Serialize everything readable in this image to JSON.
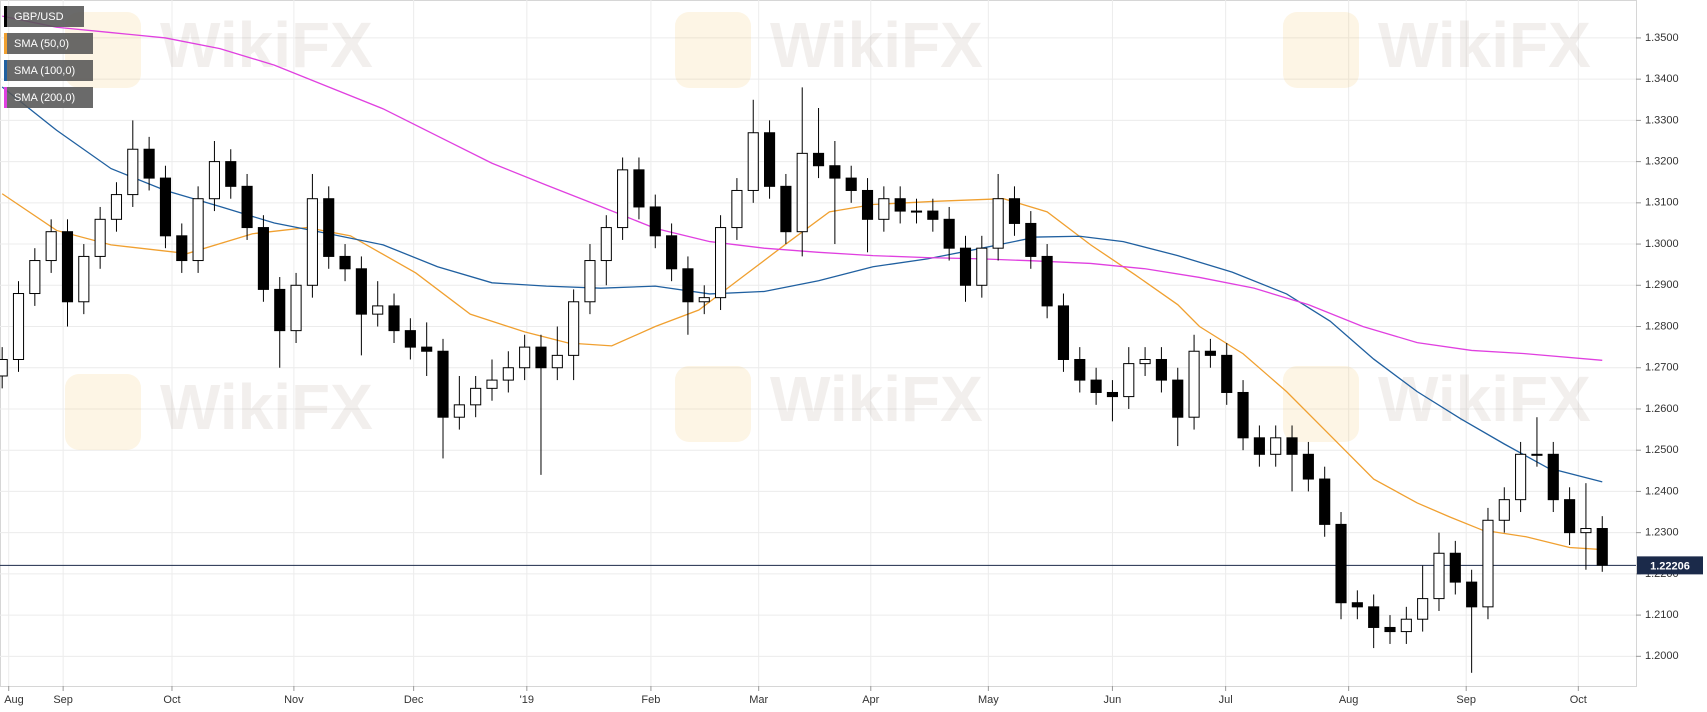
{
  "chart_data": {
    "type": "candlestick",
    "symbol": "GBP/USD",
    "watermark": "WikiFX",
    "ylim": [
      1.1928,
      1.3592
    ],
    "yticks": [
      {
        "value": 1.2,
        "label": "1.2000"
      },
      {
        "value": 1.21,
        "label": "1.2100"
      },
      {
        "value": 1.22,
        "label": "1.2200"
      },
      {
        "value": 1.23,
        "label": "1.2300"
      },
      {
        "value": 1.24,
        "label": "1.2400"
      },
      {
        "value": 1.25,
        "label": "1.2500"
      },
      {
        "value": 1.26,
        "label": "1.2600"
      },
      {
        "value": 1.27,
        "label": "1.2700"
      },
      {
        "value": 1.28,
        "label": "1.2800"
      },
      {
        "value": 1.29,
        "label": "1.2900"
      },
      {
        "value": 1.3,
        "label": "1.3000"
      },
      {
        "value": 1.31,
        "label": "1.3100"
      },
      {
        "value": 1.32,
        "label": "1.3200"
      },
      {
        "value": 1.33,
        "label": "1.3300"
      },
      {
        "value": 1.34,
        "label": "1.3400"
      },
      {
        "value": 1.35,
        "label": "1.3500"
      }
    ],
    "xlim": [
      -0.4,
      300.2
    ],
    "xticks": [
      {
        "value": 1.2,
        "label": "Aug"
      },
      {
        "value": 11.2,
        "label": "Sep"
      },
      {
        "value": 31.2,
        "label": "Oct"
      },
      {
        "value": 53.6,
        "label": "Nov"
      },
      {
        "value": 75.6,
        "label": "Dec"
      },
      {
        "value": 96.4,
        "label": "'19"
      },
      {
        "value": 119.2,
        "label": "Feb"
      },
      {
        "value": 139,
        "label": "Mar"
      },
      {
        "value": 159.6,
        "label": "Apr"
      },
      {
        "value": 181.2,
        "label": "May"
      },
      {
        "value": 204,
        "label": "Jun"
      },
      {
        "value": 224.8,
        "label": "Jul"
      },
      {
        "value": 247.4,
        "label": "Aug"
      },
      {
        "value": 269,
        "label": "Sep"
      },
      {
        "value": 289.6,
        "label": "Oct"
      }
    ],
    "grid": true,
    "up_color": "#ffffff",
    "down_color": "#000000",
    "x": [
      0,
      3,
      6,
      9,
      12,
      15,
      18,
      21,
      24,
      27,
      30,
      33,
      36,
      39,
      42,
      45,
      48,
      51,
      54,
      57,
      60,
      63,
      66,
      69,
      72,
      75,
      78,
      81,
      84,
      87,
      90,
      93,
      96,
      99,
      102,
      105,
      108,
      111,
      114,
      117,
      120,
      123,
      126,
      129,
      132,
      135,
      138,
      141,
      144,
      147,
      150,
      153,
      156,
      159,
      162,
      165,
      168,
      171,
      174,
      177,
      180,
      183,
      186,
      189,
      192,
      195,
      198,
      201,
      204,
      207,
      210,
      213,
      216,
      219,
      222,
      225,
      228,
      231,
      234,
      237,
      240,
      243,
      246,
      249,
      252,
      255,
      258,
      261,
      264,
      267,
      270,
      273,
      276,
      279,
      282,
      285,
      288,
      291,
      294
    ],
    "open": [
      1.268,
      1.272,
      1.288,
      1.296,
      1.303,
      1.286,
      1.297,
      1.306,
      1.312,
      1.323,
      1.316,
      1.302,
      1.296,
      1.311,
      1.32,
      1.314,
      1.304,
      1.289,
      1.279,
      1.29,
      1.311,
      1.297,
      1.294,
      1.283,
      1.285,
      1.279,
      1.275,
      1.274,
      1.258,
      1.261,
      1.265,
      1.267,
      1.27,
      1.275,
      1.27,
      1.273,
      1.286,
      1.296,
      1.304,
      1.318,
      1.309,
      1.302,
      1.294,
      1.286,
      1.287,
      1.304,
      1.313,
      1.327,
      1.314,
      1.303,
      1.322,
      1.319,
      1.316,
      1.313,
      1.306,
      1.311,
      1.308,
      1.308,
      1.306,
      1.299,
      1.29,
      1.299,
      1.311,
      1.305,
      1.297,
      1.285,
      1.272,
      1.267,
      1.264,
      1.263,
      1.271,
      1.272,
      1.267,
      1.258,
      1.274,
      1.273,
      1.264,
      1.253,
      1.249,
      1.253,
      1.249,
      1.243,
      1.232,
      1.213,
      1.212,
      1.207,
      1.206,
      1.209,
      1.214,
      1.225,
      1.218,
      1.212,
      1.233,
      1.238,
      1.249,
      1.249,
      1.238,
      1.23,
      1.231
    ],
    "high": [
      1.275,
      1.291,
      1.299,
      1.306,
      1.306,
      1.3,
      1.309,
      1.315,
      1.33,
      1.326,
      1.319,
      1.305,
      1.314,
      1.325,
      1.323,
      1.317,
      1.307,
      1.292,
      1.293,
      1.317,
      1.314,
      1.3,
      1.297,
      1.291,
      1.288,
      1.282,
      1.281,
      1.277,
      1.268,
      1.268,
      1.272,
      1.274,
      1.278,
      1.278,
      1.28,
      1.289,
      1.3,
      1.307,
      1.321,
      1.321,
      1.312,
      1.305,
      1.297,
      1.29,
      1.307,
      1.316,
      1.335,
      1.33,
      1.317,
      1.338,
      1.333,
      1.325,
      1.319,
      1.316,
      1.314,
      1.314,
      1.311,
      1.311,
      1.309,
      1.302,
      1.302,
      1.317,
      1.314,
      1.308,
      1.3,
      1.288,
      1.275,
      1.27,
      1.267,
      1.275,
      1.275,
      1.275,
      1.27,
      1.278,
      1.277,
      1.276,
      1.267,
      1.256,
      1.256,
      1.256,
      1.252,
      1.246,
      1.235,
      1.216,
      1.215,
      1.21,
      1.212,
      1.222,
      1.23,
      1.228,
      1.221,
      1.236,
      1.241,
      1.252,
      1.258,
      1.252,
      1.241,
      1.242,
      1.234
    ],
    "low": [
      1.265,
      1.269,
      1.285,
      1.293,
      1.28,
      1.283,
      1.294,
      1.303,
      1.309,
      1.313,
      1.299,
      1.293,
      1.293,
      1.308,
      1.311,
      1.301,
      1.286,
      1.27,
      1.276,
      1.287,
      1.294,
      1.291,
      1.273,
      1.28,
      1.276,
      1.272,
      1.268,
      1.248,
      1.255,
      1.258,
      1.262,
      1.264,
      1.267,
      1.244,
      1.267,
      1.267,
      1.283,
      1.29,
      1.301,
      1.306,
      1.299,
      1.291,
      1.278,
      1.283,
      1.284,
      1.301,
      1.31,
      1.311,
      1.3,
      1.297,
      1.316,
      1.3,
      1.31,
      1.298,
      1.303,
      1.305,
      1.305,
      1.303,
      1.296,
      1.286,
      1.287,
      1.296,
      1.302,
      1.294,
      1.282,
      1.269,
      1.264,
      1.261,
      1.257,
      1.26,
      1.268,
      1.264,
      1.251,
      1.255,
      1.27,
      1.261,
      1.25,
      1.246,
      1.246,
      1.24,
      1.24,
      1.229,
      1.209,
      1.209,
      1.202,
      1.203,
      1.203,
      1.206,
      1.211,
      1.215,
      1.196,
      1.209,
      1.23,
      1.235,
      1.246,
      1.235,
      1.227,
      1.221,
      1.2205
    ],
    "close": [
      1.272,
      1.288,
      1.296,
      1.303,
      1.286,
      1.297,
      1.306,
      1.312,
      1.323,
      1.316,
      1.302,
      1.296,
      1.311,
      1.32,
      1.314,
      1.304,
      1.289,
      1.279,
      1.29,
      1.311,
      1.297,
      1.294,
      1.283,
      1.285,
      1.279,
      1.275,
      1.274,
      1.258,
      1.261,
      1.265,
      1.267,
      1.27,
      1.275,
      1.27,
      1.273,
      1.286,
      1.296,
      1.304,
      1.318,
      1.309,
      1.302,
      1.294,
      1.286,
      1.287,
      1.304,
      1.313,
      1.327,
      1.314,
      1.303,
      1.322,
      1.319,
      1.316,
      1.313,
      1.306,
      1.311,
      1.308,
      1.308,
      1.306,
      1.299,
      1.29,
      1.299,
      1.311,
      1.305,
      1.297,
      1.285,
      1.272,
      1.267,
      1.264,
      1.263,
      1.271,
      1.272,
      1.267,
      1.258,
      1.274,
      1.273,
      1.264,
      1.253,
      1.249,
      1.253,
      1.249,
      1.243,
      1.232,
      1.213,
      1.212,
      1.207,
      1.206,
      1.209,
      1.214,
      1.225,
      1.218,
      1.212,
      1.233,
      1.238,
      1.249,
      1.249,
      1.238,
      1.23,
      1.231,
      1.2221
    ],
    "last_price": {
      "value": 1.22206,
      "label": "1.22206"
    },
    "series": [
      {
        "name": "SMA (50,0)",
        "color": "#f0a030",
        "x": [
          0,
          10,
          20,
          34,
          46,
          56,
          64,
          76,
          86,
          96,
          104,
          112,
          120,
          128,
          136,
          144,
          152,
          160,
          172,
          184,
          192,
          200,
          208,
          216,
          220,
          228,
          236,
          244,
          252,
          260,
          266,
          272,
          280,
          288,
          294
        ],
        "values": [
          1.3122,
          1.3033,
          1.2998,
          1.2977,
          1.3025,
          1.304,
          1.302,
          1.293,
          1.283,
          1.2787,
          1.276,
          1.2753,
          1.28,
          1.284,
          1.292,
          1.3,
          1.3078,
          1.3096,
          1.3104,
          1.311,
          1.3078,
          1.2998,
          1.2927,
          1.2853,
          1.28,
          1.2734,
          1.2642,
          1.2536,
          1.243,
          1.2372,
          1.2338,
          1.2306,
          1.229,
          1.2264,
          1.2259
        ]
      },
      {
        "name": "SMA (100,0)",
        "color": "#2060a0",
        "x": [
          0,
          10,
          20,
          30,
          40,
          50,
          60,
          70,
          80,
          90,
          100,
          110,
          120,
          130,
          140,
          150,
          160,
          170,
          180,
          190,
          198,
          206,
          216,
          226,
          236,
          244,
          252,
          260,
          268,
          276,
          284,
          294
        ],
        "values": [
          1.3381,
          1.3276,
          1.3183,
          1.313,
          1.3091,
          1.3051,
          1.3025,
          1.2998,
          1.2945,
          1.2906,
          1.2898,
          1.2893,
          1.2898,
          1.2879,
          1.2885,
          1.2911,
          1.2945,
          1.2964,
          1.299,
          1.3017,
          1.3019,
          1.3006,
          1.2972,
          1.2932,
          1.2879,
          1.2813,
          1.2721,
          1.2642,
          1.2576,
          1.2515,
          1.2457,
          1.2423
        ]
      },
      {
        "name": "SMA (200,0)",
        "color": "#e040e0",
        "x": [
          0,
          10,
          20,
          30,
          40,
          50,
          60,
          70,
          80,
          90,
          100,
          110,
          120,
          130,
          140,
          150,
          160,
          170,
          180,
          190,
          200,
          210,
          220,
          230,
          240,
          250,
          260,
          270,
          280,
          294
        ],
        "values": [
          1.3553,
          1.3526,
          1.3513,
          1.35,
          1.3474,
          1.3434,
          1.3381,
          1.3328,
          1.3262,
          1.3196,
          1.3143,
          1.3091,
          1.3038,
          1.3006,
          1.299,
          1.298,
          1.2972,
          1.2967,
          1.2964,
          1.2959,
          1.2953,
          1.294,
          1.2919,
          1.2893,
          1.2853,
          1.28,
          1.2761,
          1.2742,
          1.2734,
          1.2718
        ]
      }
    ]
  }
}
